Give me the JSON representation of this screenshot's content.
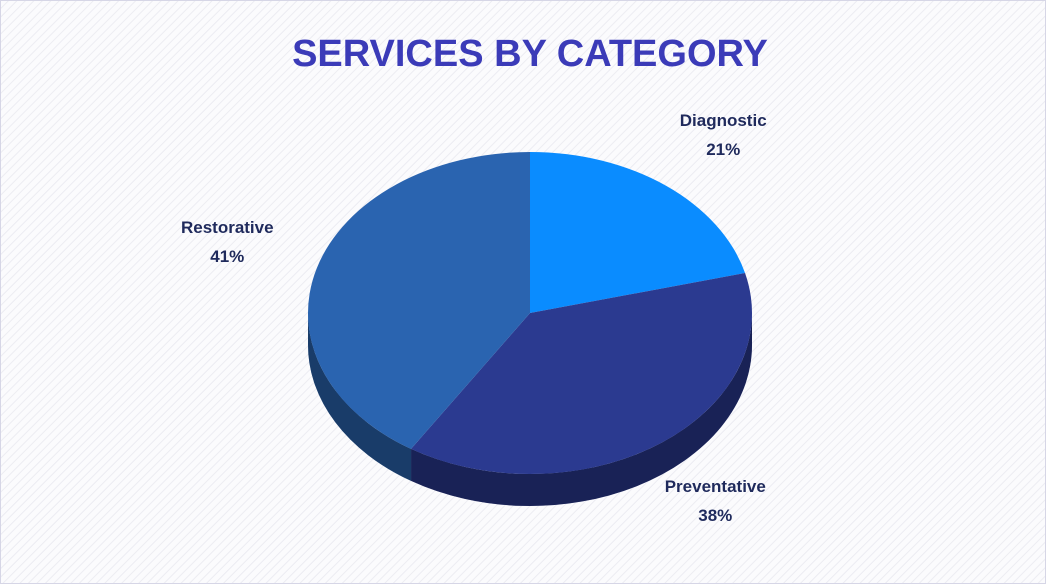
{
  "chart_data": {
    "type": "pie",
    "title": "SERVICES BY CATEGORY",
    "categories": [
      "Diagnostic",
      "Preventative",
      "Restorative"
    ],
    "values": [
      21,
      38,
      41
    ],
    "value_labels": [
      "21%",
      "38%",
      "41%"
    ],
    "colors": [
      "#0a8cff",
      "#2b3a90",
      "#2a64b0"
    ]
  }
}
